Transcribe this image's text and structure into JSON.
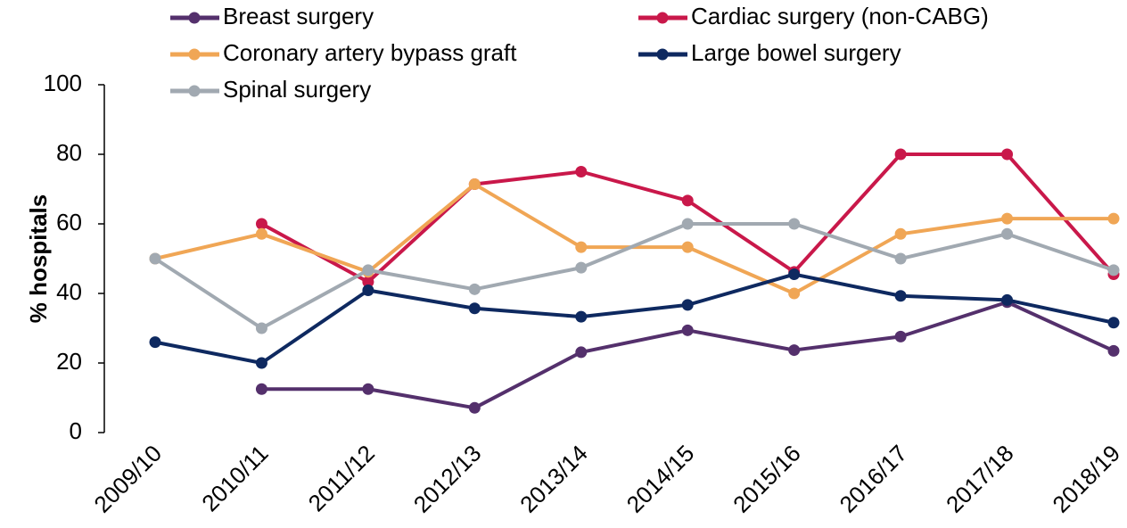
{
  "chart_data": {
    "type": "line",
    "y_label": "% hospitals",
    "categories": [
      "2009/10",
      "2010/11",
      "2011/12",
      "2012/13",
      "2013/14",
      "2014/15",
      "2015/16",
      "2016/17",
      "2017/18",
      "2018/19"
    ],
    "series": [
      {
        "name": "Breast surgery",
        "color": "#54306c",
        "values": [
          null,
          12.5,
          12.5,
          7.1,
          23.1,
          29.4,
          23.7,
          27.6,
          37.5,
          23.5
        ]
      },
      {
        "name": "Cardiac surgery (non-CABG)",
        "color": "#c9184a",
        "values": [
          null,
          60,
          43.3,
          71.4,
          75,
          66.7,
          46.2,
          80,
          80,
          45.5
        ]
      },
      {
        "name": "Coronary artery bypass graft",
        "color": "#f0a655",
        "values": [
          50,
          57.1,
          46.2,
          71.4,
          53.3,
          53.3,
          40,
          57.1,
          61.5,
          61.5
        ]
      },
      {
        "name": "Large bowel surgery",
        "color": "#0e2960",
        "values": [
          26,
          20,
          40.9,
          35.7,
          33.3,
          36.7,
          45.5,
          39.3,
          38.1,
          31.6
        ]
      },
      {
        "name": "Spinal surgery",
        "color": "#a1a9b1",
        "values": [
          50,
          30,
          46.7,
          41.2,
          47.4,
          60,
          60,
          50,
          57.1,
          46.7
        ]
      }
    ],
    "ylim": [
      0,
      100
    ],
    "yticks": [
      0,
      20,
      40,
      60,
      80,
      100
    ]
  }
}
